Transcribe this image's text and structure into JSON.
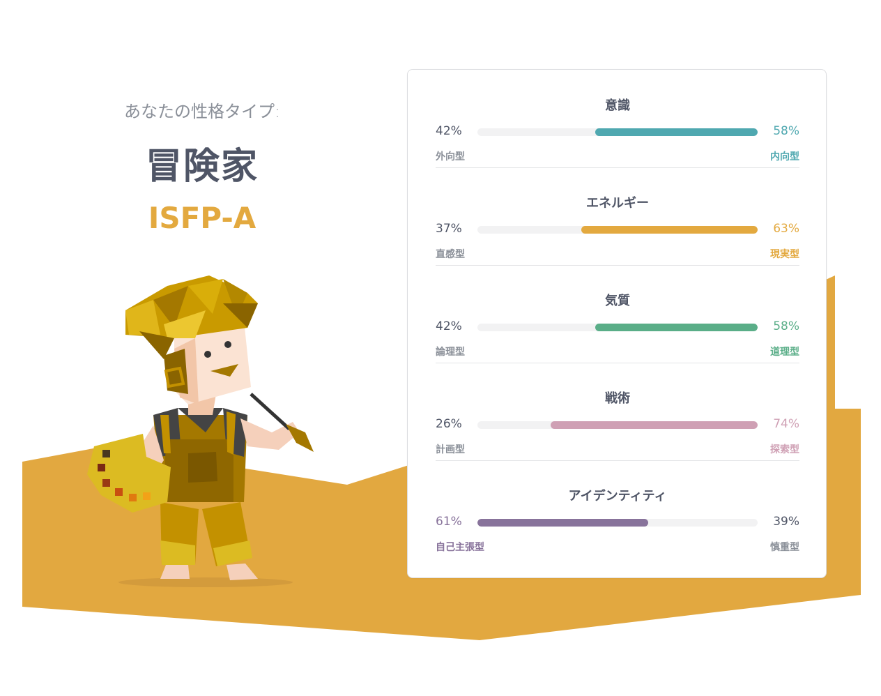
{
  "header": {
    "label": "あなたの性格タイプ:",
    "type_name": "冒険家",
    "type_code": "ISFP-A"
  },
  "colors": {
    "ground": "#e2a840",
    "mind": "#4fa8b0",
    "energy": "#e3a93f",
    "nature": "#5aae88",
    "tactics": "#cfa0b4",
    "identity": "#88739b"
  },
  "traits": [
    {
      "title": "意識",
      "left_pct": "42%",
      "right_pct": "58%",
      "left_name": "外向型",
      "right_name": "内向型",
      "dominant": "right",
      "dominant_value": 0.58,
      "color": "#4fa8b0"
    },
    {
      "title": "エネルギー",
      "left_pct": "37%",
      "right_pct": "63%",
      "left_name": "直感型",
      "right_name": "現実型",
      "dominant": "right",
      "dominant_value": 0.63,
      "color": "#e3a93f"
    },
    {
      "title": "気質",
      "left_pct": "42%",
      "right_pct": "58%",
      "left_name": "論理型",
      "right_name": "道理型",
      "dominant": "right",
      "dominant_value": 0.58,
      "color": "#5aae88"
    },
    {
      "title": "戦術",
      "left_pct": "26%",
      "right_pct": "74%",
      "left_name": "計画型",
      "right_name": "探索型",
      "dominant": "right",
      "dominant_value": 0.74,
      "color": "#cfa0b4"
    },
    {
      "title": "アイデンティティ",
      "left_pct": "61%",
      "right_pct": "39%",
      "left_name": "自己主張型",
      "right_name": "慎重型",
      "dominant": "left",
      "dominant_value": 0.61,
      "color": "#88739b"
    }
  ]
}
